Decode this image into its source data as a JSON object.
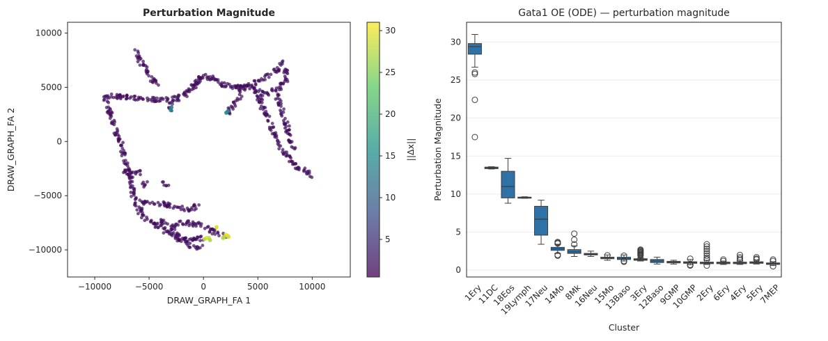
{
  "chart_data": [
    {
      "type": "scatter",
      "title": "Perturbation Magnitude",
      "xlabel": "DRAW_GRAPH_FA 1",
      "ylabel": "DRAW_GRAPH_FA 2",
      "xlim": [
        -12500,
        13500
      ],
      "ylim": [
        -12500,
        11000
      ],
      "xticks": [
        -10000,
        -5000,
        0,
        5000,
        10000
      ],
      "yticks": [
        -10000,
        -5000,
        0,
        5000,
        10000
      ],
      "colormap": "viridis",
      "colorbar": {
        "label": "||Δx||",
        "range": [
          0.5,
          31
        ],
        "ticks": [
          5,
          10,
          15,
          20,
          25,
          30
        ]
      },
      "grid": false,
      "backbone_paths": [
        [
          [
            -6200,
            8400
          ],
          [
            -5900,
            7600
          ],
          [
            -5000,
            6200
          ],
          [
            -4300,
            5200
          ]
        ],
        [
          [
            -9000,
            4200
          ],
          [
            -7500,
            4100
          ],
          [
            -5500,
            4000
          ],
          [
            -4300,
            3900
          ],
          [
            -3200,
            3800
          ],
          [
            -2000,
            4100
          ],
          [
            -1000,
            5000
          ],
          [
            -200,
            6000
          ],
          [
            800,
            5900
          ],
          [
            1800,
            5200
          ],
          [
            3000,
            5000
          ],
          [
            4200,
            5100
          ],
          [
            5500,
            5800
          ],
          [
            6800,
            6600
          ],
          [
            7100,
            7400
          ]
        ],
        [
          [
            3000,
            5000
          ],
          [
            4500,
            4800
          ],
          [
            5800,
            4300
          ],
          [
            6900,
            4900
          ],
          [
            7700,
            5700
          ],
          [
            7500,
            6800
          ]
        ],
        [
          [
            -3000,
            3800
          ],
          [
            -3000,
            3000
          ]
        ],
        [
          [
            -9000,
            4200
          ],
          [
            -8600,
            2600
          ],
          [
            -8100,
            1100
          ],
          [
            -7500,
            -400
          ],
          [
            -7200,
            -1800
          ],
          [
            -6900,
            -2900
          ]
        ],
        [
          [
            -7600,
            -2900
          ],
          [
            -6500,
            -2900
          ],
          [
            -5800,
            -2900
          ]
        ],
        [
          [
            -6700,
            -2900
          ],
          [
            -6600,
            -4300
          ],
          [
            -6300,
            -5600
          ],
          [
            -5600,
            -6800
          ],
          [
            -4600,
            -7600
          ],
          [
            -3500,
            -8200
          ],
          [
            -2500,
            -8800
          ],
          [
            -1700,
            -9300
          ],
          [
            -800,
            -9700
          ],
          [
            -100,
            -9800
          ]
        ],
        [
          [
            -6000,
            -5500
          ],
          [
            -4600,
            -5700
          ],
          [
            -3400,
            -5800
          ],
          [
            -2300,
            -6100
          ],
          [
            -1200,
            -6300
          ],
          [
            -500,
            -5700
          ]
        ],
        [
          [
            -4300,
            -7300
          ],
          [
            -2800,
            -7700
          ],
          [
            -1400,
            -7500
          ],
          [
            0,
            -7800
          ],
          [
            800,
            -8300
          ],
          [
            1700,
            -8600
          ],
          [
            2200,
            -8700
          ]
        ],
        [
          [
            -3200,
            -8000
          ],
          [
            -2100,
            -9000
          ],
          [
            -700,
            -9100
          ],
          [
            100,
            -8900
          ]
        ],
        [
          [
            -3900,
            -3800
          ],
          [
            -3400,
            -4200
          ]
        ],
        [
          [
            -5500,
            -4000
          ],
          [
            -5000,
            -3700
          ]
        ],
        [
          [
            -100,
            6000
          ],
          [
            -1200,
            4800
          ]
        ],
        [
          [
            2400,
            2700
          ],
          [
            2900,
            3700
          ],
          [
            3500,
            4500
          ]
        ],
        [
          [
            4800,
            4700
          ],
          [
            5600,
            2800
          ],
          [
            6500,
            800
          ],
          [
            7200,
            -700
          ],
          [
            7900,
            -1600
          ],
          [
            8700,
            -2300
          ],
          [
            9500,
            -2800
          ],
          [
            10000,
            -3400
          ]
        ],
        [
          [
            6700,
            4400
          ],
          [
            7100,
            3100
          ],
          [
            7700,
            1200
          ],
          [
            8300,
            -700
          ]
        ]
      ],
      "highlight_points": [
        {
          "x": -3000,
          "y": 2900,
          "value": 15
        },
        {
          "x": -2950,
          "y": 3150,
          "value": 13
        },
        {
          "x": 2100,
          "y": 2650,
          "value": 15
        },
        {
          "x": 2250,
          "y": 2800,
          "value": 14
        },
        {
          "x": 2200,
          "y": -8700,
          "value": 31
        },
        {
          "x": 2050,
          "y": -8600,
          "value": 30
        },
        {
          "x": 1900,
          "y": -8800,
          "value": 28
        },
        {
          "x": 2300,
          "y": -8800,
          "value": 29
        },
        {
          "x": 1800,
          "y": -8900,
          "value": 27
        },
        {
          "x": 1200,
          "y": -7900,
          "value": 29
        },
        {
          "x": 300,
          "y": -8900,
          "value": 30
        },
        {
          "x": 500,
          "y": -8900,
          "value": 29
        },
        {
          "x": 100,
          "y": -9000,
          "value": 28
        },
        {
          "x": 600,
          "y": -9100,
          "value": 27
        }
      ]
    },
    {
      "type": "box",
      "title": "Gata1 OE (ODE) — perturbation magnitude",
      "xlabel": "Cluster",
      "ylabel": "Perturbation Magnitude",
      "ylim": [
        -0.9,
        32.6
      ],
      "yticks": [
        0,
        5,
        10,
        15,
        20,
        25,
        30
      ],
      "grid": "horizontal",
      "color": "#2f72a8",
      "categories": [
        "1Ery",
        "11DC",
        "18Eos",
        "19Lymph",
        "17Neu",
        "14Mo",
        "8Mk",
        "16Neu",
        "15Mo",
        "13Baso",
        "3Ery",
        "12Baso",
        "9GMP",
        "10GMP",
        "2Ery",
        "6Ery",
        "4Ery",
        "5Ery",
        "7MEP"
      ],
      "boxes": [
        {
          "q1": 28.4,
          "median": 29.4,
          "q3": 29.8,
          "wlo": 26.7,
          "whi": 31.0,
          "fliers": [
            26.0,
            25.8,
            22.4,
            17.5
          ]
        },
        {
          "q1": 13.35,
          "median": 13.45,
          "q3": 13.55,
          "wlo": 13.3,
          "whi": 13.6,
          "fliers": []
        },
        {
          "q1": 9.5,
          "median": 11.0,
          "q3": 13.0,
          "wlo": 8.8,
          "whi": 14.7,
          "fliers": []
        },
        {
          "q1": 9.5,
          "median": 9.55,
          "q3": 9.6,
          "wlo": 9.45,
          "whi": 9.65,
          "fliers": []
        },
        {
          "q1": 4.6,
          "median": 6.7,
          "q3": 8.4,
          "wlo": 3.4,
          "whi": 9.2,
          "fliers": []
        },
        {
          "q1": 2.6,
          "median": 2.8,
          "q3": 3.0,
          "wlo": 2.2,
          "whi": 3.4,
          "fliers": [
            3.6,
            3.7,
            3.5,
            2.0,
            1.9
          ]
        },
        {
          "q1": 2.2,
          "median": 2.4,
          "q3": 2.7,
          "wlo": 1.8,
          "whi": 3.2,
          "fliers": [
            4.8,
            4.0,
            3.4
          ]
        },
        {
          "q1": 2.0,
          "median": 2.1,
          "q3": 2.2,
          "wlo": 1.8,
          "whi": 2.5,
          "fliers": []
        },
        {
          "q1": 1.5,
          "median": 1.6,
          "q3": 1.7,
          "wlo": 1.3,
          "whi": 2.0,
          "fliers": [
            1.95
          ]
        },
        {
          "q1": 1.4,
          "median": 1.5,
          "q3": 1.7,
          "wlo": 1.2,
          "whi": 2.0,
          "fliers": [
            1.2,
            1.9,
            1.1
          ]
        },
        {
          "q1": 1.3,
          "median": 1.4,
          "q3": 1.5,
          "wlo": 1.2,
          "whi": 1.6,
          "fliers": [
            1.9,
            2.0,
            2.1,
            2.2,
            2.3,
            2.4,
            2.5,
            2.6,
            2.7
          ]
        },
        {
          "q1": 1.0,
          "median": 1.2,
          "q3": 1.4,
          "wlo": 0.8,
          "whi": 1.7,
          "fliers": []
        },
        {
          "q1": 0.95,
          "median": 1.05,
          "q3": 1.15,
          "wlo": 0.8,
          "whi": 1.3,
          "fliers": []
        },
        {
          "q1": 0.9,
          "median": 1.0,
          "q3": 1.1,
          "wlo": 0.7,
          "whi": 1.4,
          "fliers": [
            1.5,
            0.6,
            0.7
          ]
        },
        {
          "q1": 0.85,
          "median": 0.95,
          "q3": 1.05,
          "wlo": 0.75,
          "whi": 1.3,
          "fliers": [
            1.6,
            1.9,
            2.2,
            2.5,
            2.8,
            3.1,
            3.4,
            1.4,
            0.6
          ]
        },
        {
          "q1": 0.85,
          "median": 0.95,
          "q3": 1.05,
          "wlo": 0.75,
          "whi": 1.2,
          "fliers": [
            1.4,
            1.2
          ]
        },
        {
          "q1": 0.85,
          "median": 0.95,
          "q3": 1.05,
          "wlo": 0.75,
          "whi": 1.2,
          "fliers": [
            2.0,
            1.7,
            1.5,
            1.3
          ]
        },
        {
          "q1": 0.9,
          "median": 1.0,
          "q3": 1.1,
          "wlo": 0.8,
          "whi": 1.3,
          "fliers": [
            1.7,
            1.5,
            1.4
          ]
        },
        {
          "q1": 0.75,
          "median": 0.85,
          "q3": 0.95,
          "wlo": 0.6,
          "whi": 1.1,
          "fliers": [
            1.4,
            1.2,
            0.5
          ]
        }
      ]
    }
  ]
}
